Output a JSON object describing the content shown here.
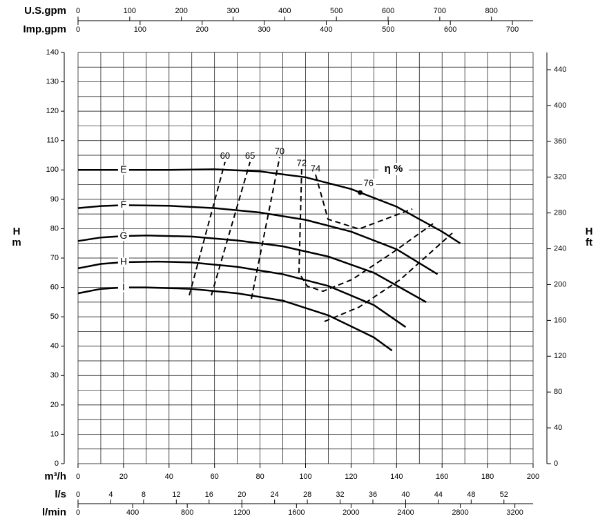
{
  "chart_data": {
    "type": "line",
    "xlabel": "m³/h",
    "xlim": [
      0,
      200
    ],
    "xticks": [
      0,
      20,
      40,
      60,
      80,
      100,
      120,
      140,
      160,
      180,
      200
    ],
    "ylabel": "H",
    "yunit": "m",
    "ylim": [
      0,
      140
    ],
    "yticks": [
      0,
      10,
      20,
      30,
      40,
      50,
      60,
      70,
      80,
      90,
      100,
      110,
      120,
      130,
      140
    ],
    "y2label": "H",
    "y2unit": "ft",
    "y2lim": [
      0,
      459.3
    ],
    "y2ticks": [
      0,
      40,
      80,
      120,
      160,
      200,
      240,
      280,
      320,
      360,
      400,
      440
    ],
    "grid": true,
    "xgrid_step": 10,
    "ygrid_step": 5,
    "top_axes": [
      {
        "label": "U.S.gpm",
        "lim": [
          0,
          880.6
        ],
        "ticks": [
          0,
          100,
          200,
          300,
          400,
          500,
          600,
          700,
          800
        ]
      },
      {
        "label": "Imp.gpm",
        "lim": [
          0,
          733.3
        ],
        "ticks": [
          0,
          100,
          200,
          300,
          400,
          500,
          600,
          700
        ]
      }
    ],
    "bottom_axes": [
      {
        "label": "l/s",
        "lim": [
          0,
          55.56
        ],
        "ticks": [
          0,
          4,
          8,
          12,
          16,
          20,
          24,
          28,
          32,
          36,
          40,
          44,
          48,
          52
        ]
      },
      {
        "label": "l/min",
        "lim": [
          0,
          3333.3
        ],
        "ticks": [
          0,
          400,
          800,
          1200,
          1600,
          2000,
          2400,
          2800,
          3200
        ]
      }
    ],
    "series": [
      {
        "name": "E",
        "color": "#000000",
        "x": [
          0,
          20,
          40,
          60,
          80,
          100,
          120,
          140,
          160,
          168
        ],
        "values": [
          100,
          100,
          100,
          100.2,
          99.5,
          97.5,
          93.5,
          87.5,
          79,
          75
        ]
      },
      {
        "name": "F",
        "color": "#000000",
        "x": [
          0,
          10,
          20,
          40,
          60,
          80,
          100,
          120,
          140,
          158
        ],
        "values": [
          87,
          87.7,
          88,
          87.8,
          87,
          85.5,
          83,
          79,
          73,
          64.5
        ]
      },
      {
        "name": "G",
        "color": "#000000",
        "x": [
          0,
          10,
          20,
          30,
          50,
          70,
          90,
          110,
          130,
          153
        ],
        "values": [
          75.8,
          77,
          77.5,
          77.7,
          77.3,
          76,
          74,
          70.5,
          65,
          55
        ]
      },
      {
        "name": "H",
        "color": "#000000",
        "x": [
          0,
          10,
          20,
          35,
          50,
          70,
          90,
          110,
          130,
          144
        ],
        "values": [
          66.5,
          68,
          68.6,
          68.8,
          68.5,
          67,
          64.5,
          60.5,
          54,
          46.5
        ]
      },
      {
        "name": "I",
        "color": "#000000",
        "x": [
          0,
          10,
          20,
          30,
          50,
          70,
          90,
          110,
          130,
          138
        ],
        "values": [
          58,
          59.5,
          60,
          60,
          59.5,
          58,
          55.5,
          50.5,
          43,
          38.5
        ]
      }
    ],
    "efficiency": [
      {
        "name": "60",
        "color": "#000000",
        "x": [
          48.9,
          64.6
        ],
        "values": [
          57.3,
          102.7
        ]
      },
      {
        "name": "65",
        "color": "#000000",
        "x": [
          58.6,
          75.6
        ],
        "values": [
          57.3,
          102.7
        ]
      },
      {
        "name": "70",
        "color": "#000000",
        "x": [
          76.2,
          88.6,
          null,
          108.3,
          123.5,
          141.7,
          164.5
        ],
        "values": [
          56.1,
          104.3,
          null,
          48.4,
          53.3,
          62.7,
          78.5
        ]
      },
      {
        "name": "72",
        "color": "#000000",
        "x": [
          98.3,
          97.1,
          100.8,
          107.7,
          120.5,
          138.7,
          156.9
        ],
        "values": [
          100.3,
          65,
          60.4,
          58.7,
          62.7,
          72.1,
          82.2
        ]
      },
      {
        "name": "74",
        "color": "#000000",
        "x": [
          104.4,
          109.9,
          123.5,
          146.9
        ],
        "values": [
          98.4,
          83.2,
          79.9,
          86.7
        ]
      }
    ],
    "points": [
      {
        "name": "76",
        "x": 124,
        "value": 92.3
      }
    ],
    "annotations": [
      {
        "text": "η %",
        "x": 138.7,
        "y": 100.3
      }
    ]
  }
}
